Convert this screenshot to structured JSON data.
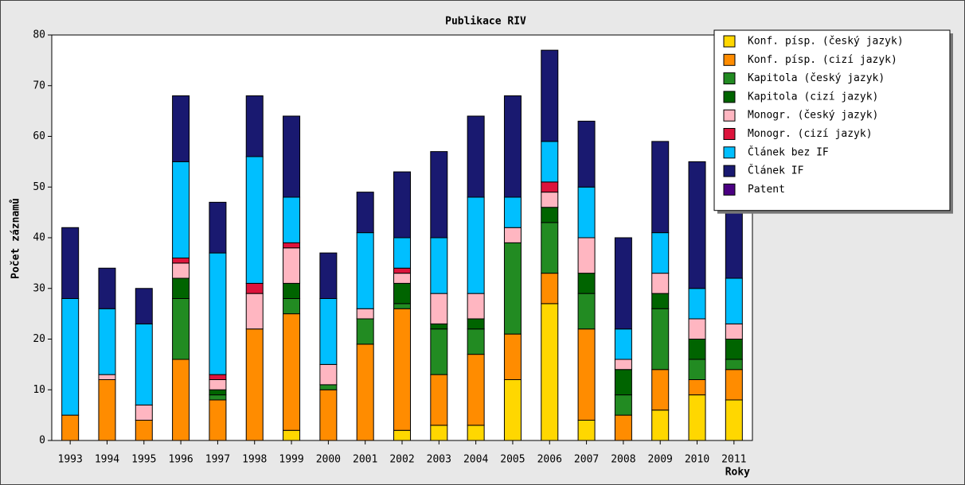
{
  "chart_data": {
    "type": "stacked_bar",
    "title": "Publikace RIV",
    "x_label": "Roky",
    "y_label": "Počet záznamů",
    "categories": [
      "1993",
      "1994",
      "1995",
      "1996",
      "1997",
      "1998",
      "1999",
      "2000",
      "2001",
      "2002",
      "2003",
      "2004",
      "2005",
      "2006",
      "2007",
      "2008",
      "2009",
      "2010",
      "2011"
    ],
    "ylim": [
      0,
      80
    ],
    "yticks": [
      0,
      10,
      20,
      30,
      40,
      50,
      60,
      70,
      80
    ],
    "legend": "upper right",
    "series": [
      {
        "name": "Konf. písp. (český jazyk)",
        "color": "#ffd700",
        "values": [
          0,
          0,
          0,
          0,
          0,
          0,
          2,
          0,
          0,
          2,
          3,
          3,
          12,
          27,
          4,
          0,
          6,
          9,
          8
        ]
      },
      {
        "name": "Konf. písp. (cizí jazyk)",
        "color": "#ff8c00",
        "values": [
          5,
          12,
          4,
          16,
          8,
          22,
          23,
          10,
          19,
          24,
          10,
          14,
          9,
          6,
          18,
          5,
          8,
          3,
          6
        ]
      },
      {
        "name": "Kapitola (český jazyk)",
        "color": "#228b22",
        "values": [
          0,
          0,
          0,
          12,
          1,
          0,
          3,
          1,
          5,
          1,
          9,
          5,
          18,
          10,
          7,
          4,
          12,
          4,
          2
        ]
      },
      {
        "name": "Kapitola (cizí jazyk)",
        "color": "#006400",
        "values": [
          0,
          0,
          0,
          4,
          1,
          0,
          3,
          0,
          0,
          4,
          1,
          2,
          0,
          3,
          4,
          5,
          3,
          4,
          4
        ]
      },
      {
        "name": "Monogr. (český jazyk)",
        "color": "#ffb6c1",
        "values": [
          0,
          1,
          3,
          3,
          2,
          7,
          7,
          4,
          2,
          2,
          6,
          5,
          3,
          3,
          7,
          2,
          4,
          4,
          3
        ]
      },
      {
        "name": "Monogr. (cizí jazyk)",
        "color": "#dc143c",
        "values": [
          0,
          0,
          0,
          1,
          1,
          2,
          1,
          0,
          0,
          1,
          0,
          0,
          0,
          2,
          0,
          0,
          0,
          0,
          0
        ]
      },
      {
        "name": "Článek bez IF",
        "color": "#00bfff",
        "values": [
          23,
          13,
          16,
          19,
          24,
          25,
          9,
          13,
          15,
          6,
          11,
          19,
          6,
          8,
          10,
          6,
          8,
          6,
          9
        ]
      },
      {
        "name": "Článek IF",
        "color": "#191970",
        "values": [
          14,
          8,
          7,
          13,
          10,
          12,
          16,
          9,
          8,
          13,
          17,
          16,
          20,
          18,
          13,
          18,
          18,
          25,
          17
        ]
      },
      {
        "name": "Patent",
        "color": "#4b0082",
        "values": [
          0,
          0,
          0,
          0,
          0,
          0,
          0,
          0,
          0,
          0,
          0,
          0,
          0,
          0,
          0,
          0,
          0,
          0,
          0
        ]
      }
    ]
  }
}
